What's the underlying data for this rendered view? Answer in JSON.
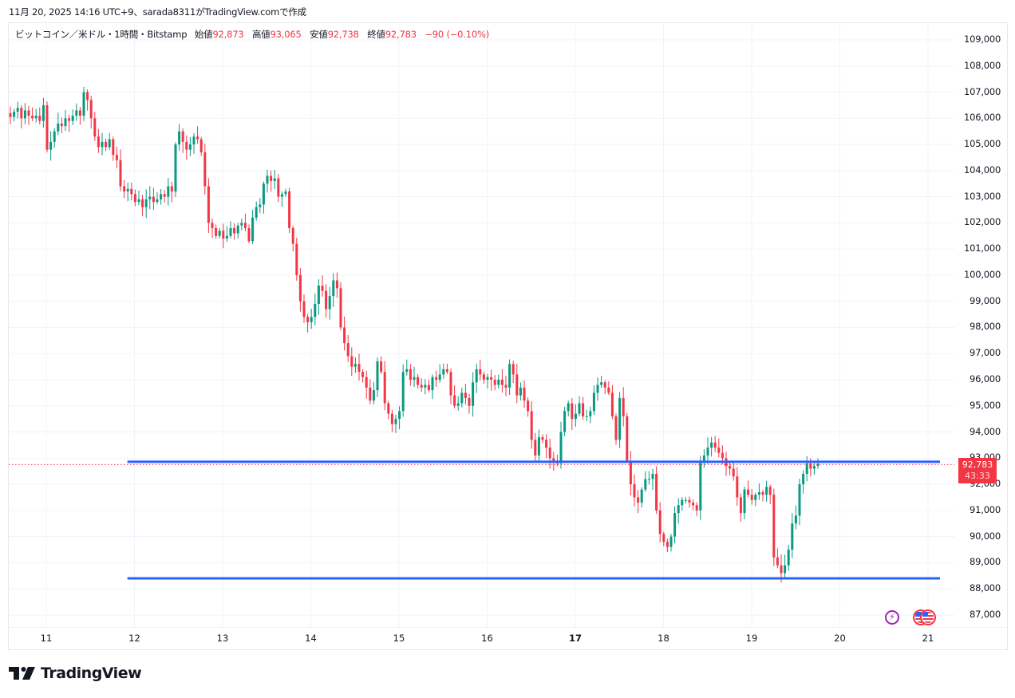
{
  "caption": "11月 20, 2025 14:16 UTC+9、sarada8311がTradingView.comで作成",
  "legend": {
    "symbol": "ビットコイン／米ドル・1時間・Bitstamp",
    "open_label": "始値",
    "open": "92,873",
    "high_label": "高値",
    "high": "93,065",
    "low_label": "安値",
    "low": "92,738",
    "close_label": "終値",
    "close": "92,783",
    "change": "−90 (−0.10%)"
  },
  "price_tag": {
    "price": "92,783",
    "countdown": "43:33"
  },
  "logo": {
    "text": "TradingView"
  },
  "icons": {
    "event_flash": "flash-icon",
    "event_us": "us-flag-icon"
  },
  "colors": {
    "up": "#089981",
    "down": "#F23645",
    "hline": "#2962FF",
    "grid": "#f0f3fa",
    "last_price": "#F23645"
  },
  "chart_data": {
    "type": "candlestick",
    "title": "ビットコイン／米ドル・1時間・Bitstamp",
    "xlabel": "",
    "ylabel": "",
    "ylim": [
      86300,
      109800
    ],
    "y_ticks": [
      "109,000",
      "108,000",
      "107,000",
      "106,000",
      "105,000",
      "104,000",
      "103,000",
      "102,000",
      "101,000",
      "100,000",
      "99,000",
      "98,000",
      "97,000",
      "96,000",
      "95,000",
      "94,000",
      "93,000",
      "92,000",
      "91,000",
      "90,000",
      "89,000",
      "88,000",
      "87,000"
    ],
    "x_ticks": [
      {
        "label": "11",
        "day": 11
      },
      {
        "label": "12",
        "day": 12
      },
      {
        "label": "13",
        "day": 13
      },
      {
        "label": "14",
        "day": 14
      },
      {
        "label": "15",
        "day": 15
      },
      {
        "label": "16",
        "day": 16
      },
      {
        "label": "17",
        "day": 17,
        "bold": true
      },
      {
        "label": "18",
        "day": 18
      },
      {
        "label": "19",
        "day": 19
      },
      {
        "label": "20",
        "day": 20
      },
      {
        "label": "21",
        "day": 21
      }
    ],
    "horizontal_lines": [
      {
        "price": 92860,
        "from_day": 11.92,
        "color": "#2962FF"
      },
      {
        "price": 88400,
        "from_day": 11.92,
        "color": "#2962FF"
      }
    ],
    "last_price": 92783,
    "interval": "1h",
    "closes": [
      106050,
      106250,
      106400,
      106000,
      106300,
      106100,
      106000,
      106100,
      105900,
      106500,
      104800,
      105100,
      105500,
      105800,
      105700,
      106000,
      105900,
      106100,
      106300,
      106100,
      107000,
      106700,
      106000,
      105300,
      104900,
      105100,
      104900,
      105200,
      104600,
      104400,
      103400,
      103200,
      103300,
      103100,
      102800,
      102900,
      102600,
      102900,
      103000,
      102800,
      102900,
      103100,
      103000,
      103400,
      103200,
      105000,
      105500,
      105100,
      104800,
      105000,
      105300,
      105200,
      104700,
      103400,
      102000,
      101800,
      101500,
      101700,
      101400,
      101500,
      101800,
      101600,
      101900,
      102000,
      101800,
      101300,
      102200,
      102600,
      102700,
      103500,
      103800,
      103600,
      103700,
      103000,
      103100,
      103200,
      101800,
      101200,
      100000,
      99000,
      98400,
      98200,
      98400,
      98900,
      99600,
      99400,
      98700,
      99200,
      99800,
      99500,
      98000,
      97400,
      96900,
      96500,
      96600,
      96300,
      96100,
      95700,
      95200,
      95600,
      96700,
      96300,
      95100,
      94700,
      94300,
      94500,
      94800,
      96300,
      96400,
      96000,
      96100,
      95800,
      95700,
      95800,
      95600,
      96100,
      96000,
      96200,
      96400,
      96300,
      95400,
      95000,
      95100,
      95500,
      95300,
      95000,
      95900,
      96400,
      96200,
      96000,
      96100,
      96000,
      95800,
      96000,
      95800,
      95700,
      96600,
      96200,
      95400,
      95700,
      95200,
      94800,
      93700,
      93100,
      93800,
      93700,
      93400,
      93000,
      92900,
      92800,
      94000,
      94800,
      95100,
      94500,
      94700,
      95100,
      94600,
      94600,
      94800,
      95500,
      95800,
      95900,
      95700,
      95500,
      94600,
      93700,
      95300,
      94600,
      92900,
      92000,
      91500,
      91300,
      91800,
      92200,
      92200,
      92400,
      91000,
      90100,
      89800,
      89600,
      90000,
      90900,
      91200,
      91400,
      91400,
      91300,
      91200,
      91000,
      92900,
      93100,
      93400,
      93600,
      93400,
      93200,
      93000,
      92700,
      92600,
      92300,
      91500,
      90900,
      91800,
      91600,
      91400,
      91600,
      91700,
      91600,
      91900,
      91600,
      89200,
      88900,
      88600,
      88900,
      89500,
      90500,
      90800,
      92000,
      92400,
      92800,
      92600,
      92700,
      92783
    ]
  }
}
